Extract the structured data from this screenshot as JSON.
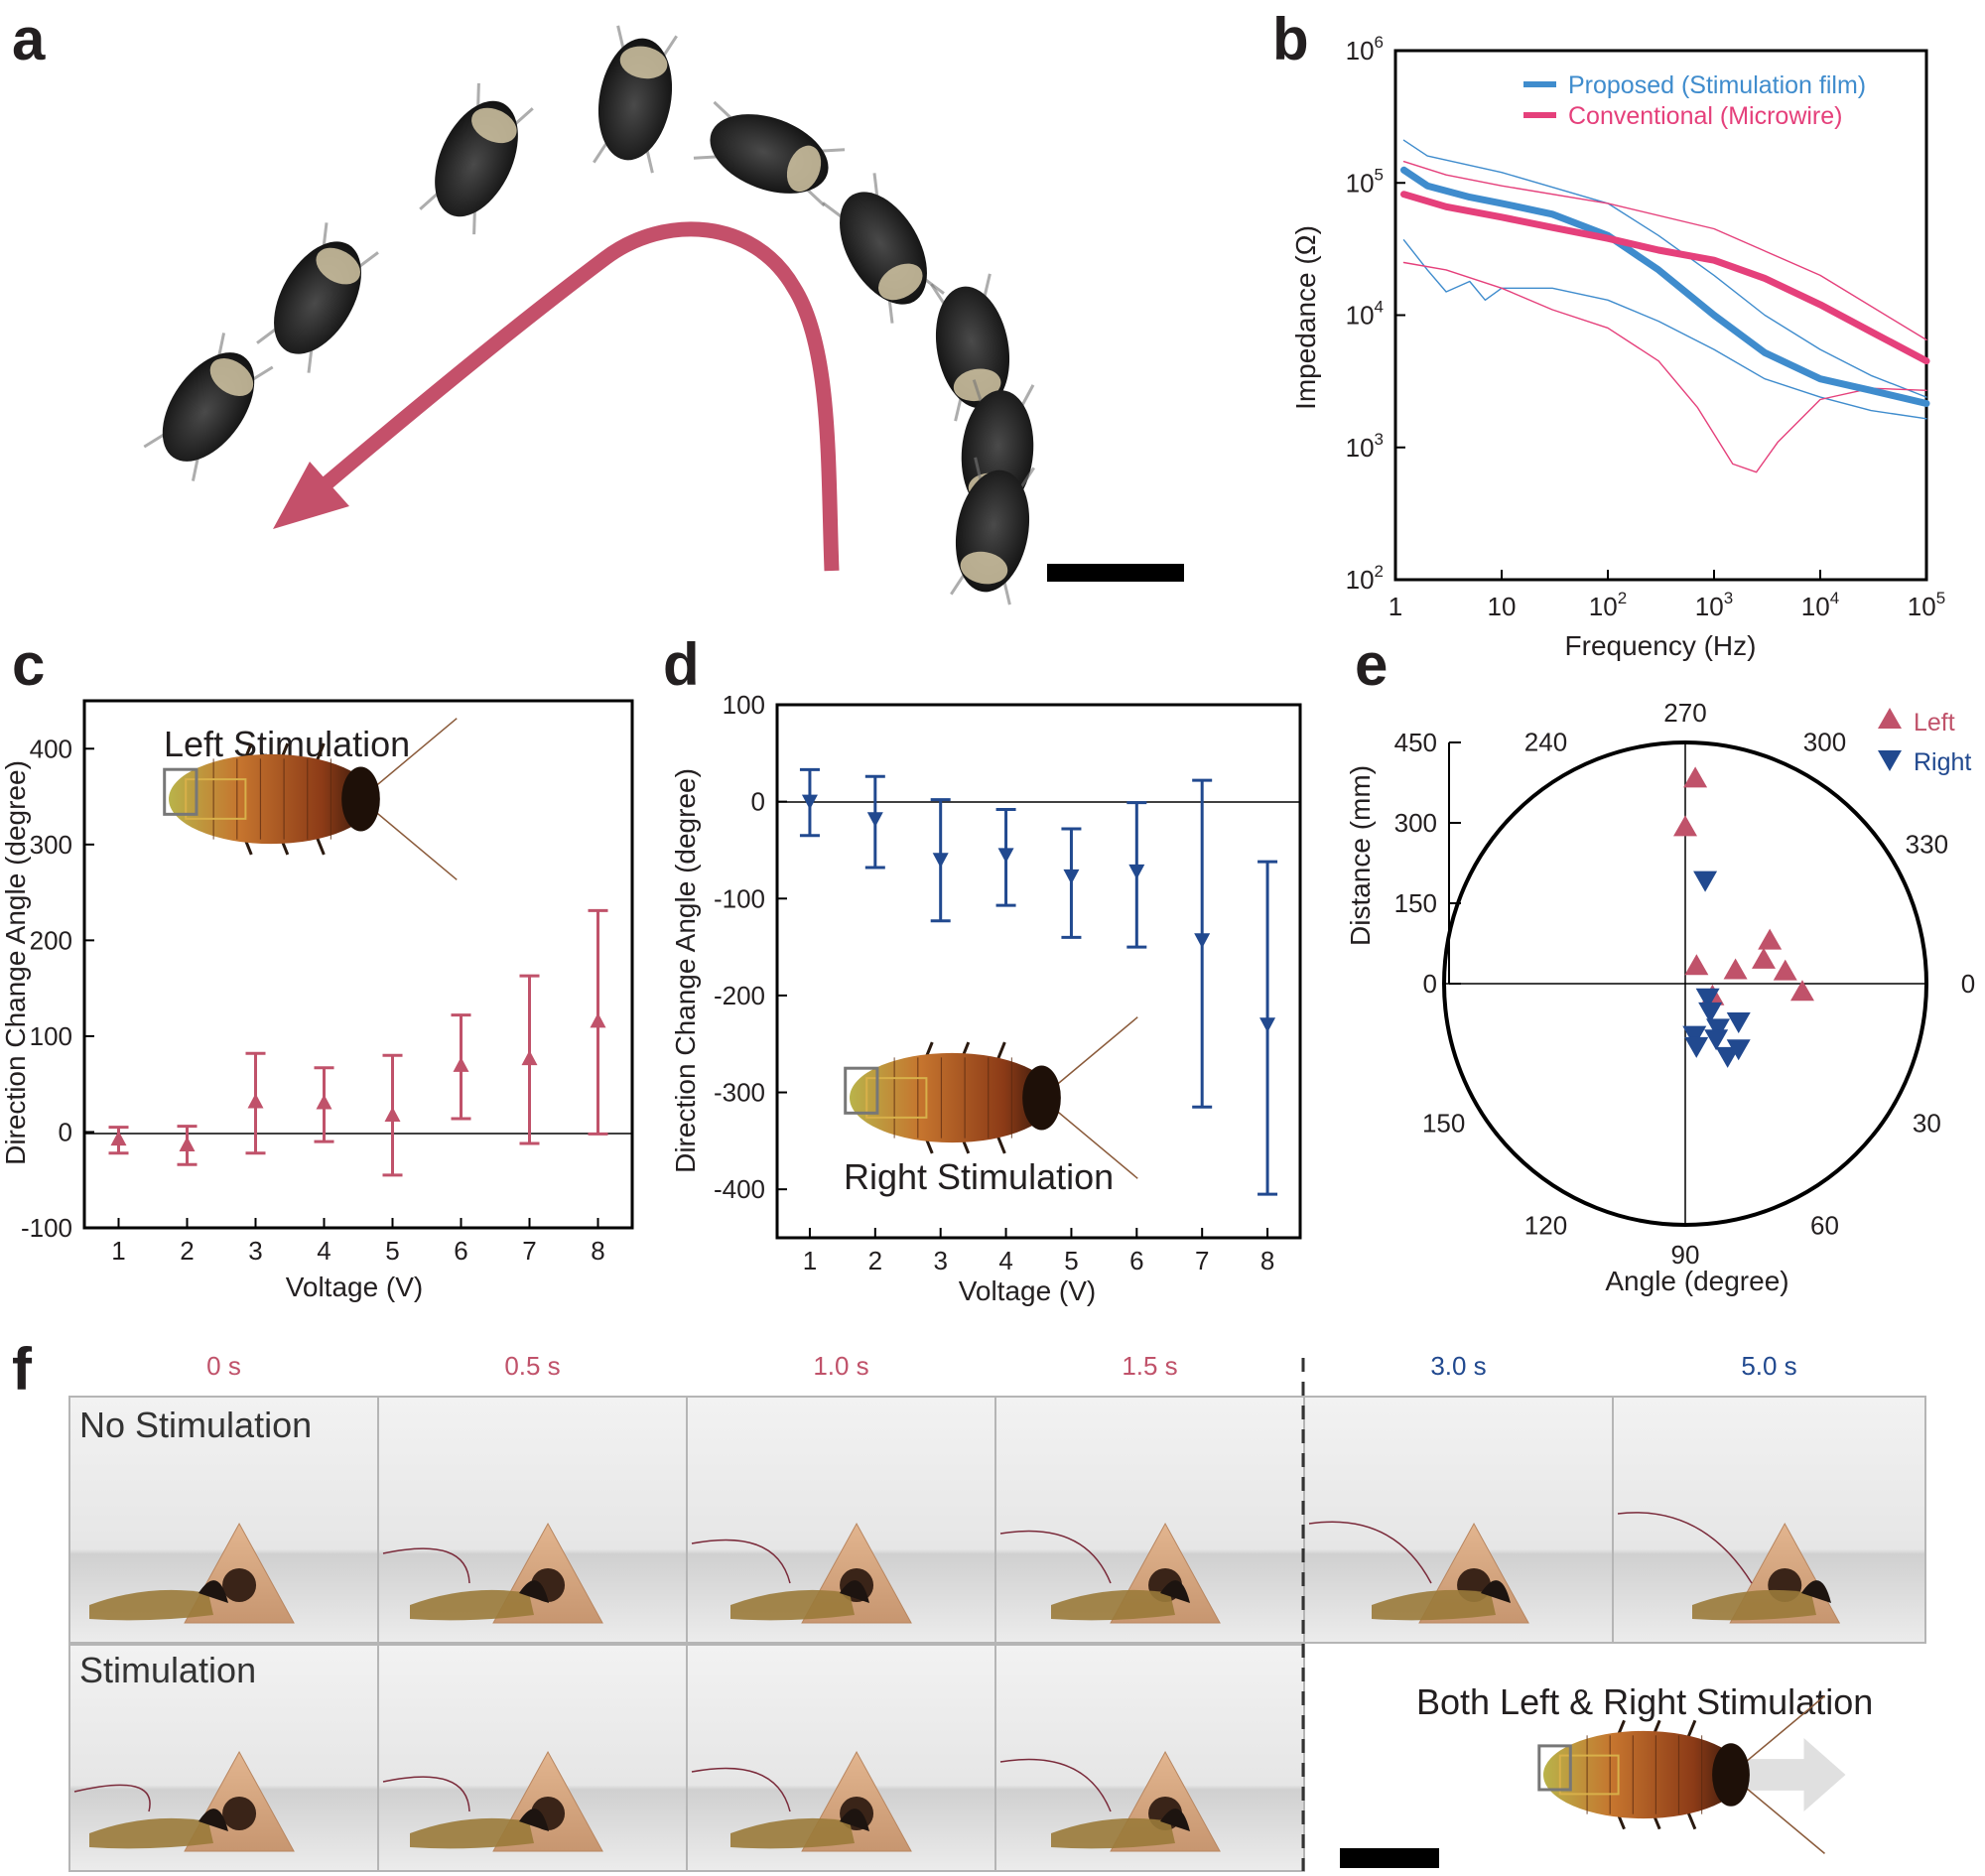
{
  "panel_labels": [
    "a",
    "b",
    "c",
    "d",
    "e",
    "f"
  ],
  "colors": {
    "left": "#c0526a",
    "right": "#21498f",
    "proposed": "#3f8ccd",
    "conventional": "#e5407b",
    "arrow": "#c4506a",
    "dark_text": "#231f20"
  },
  "chart_data": [
    {
      "panel": "b",
      "type": "line",
      "xscale": "log",
      "yscale": "log",
      "xlabel": "Frequency (Hz)",
      "ylabel": "Impedance (Ω)",
      "xlim": [
        1,
        100000
      ],
      "ylim": [
        100,
        1000000
      ],
      "xtick_labels": [
        {
          "base": "1",
          "exp": ""
        },
        {
          "base": "10",
          "exp": ""
        },
        {
          "base": "10",
          "exp": "2"
        },
        {
          "base": "10",
          "exp": "3"
        },
        {
          "base": "10",
          "exp": "4"
        },
        {
          "base": "10",
          "exp": "5"
        }
      ],
      "ytick_labels": [
        {
          "base": "10",
          "exp": "2"
        },
        {
          "base": "10",
          "exp": "3"
        },
        {
          "base": "10",
          "exp": "4"
        },
        {
          "base": "10",
          "exp": "5"
        },
        {
          "base": "10",
          "exp": "6"
        }
      ],
      "legend": [
        "Proposed (Stimulation film)",
        "Conventional (Microwire)"
      ],
      "series": [
        {
          "name": "Proposed (Stimulation film)",
          "role": "mean",
          "color": "#3f8ccd",
          "x": [
            1.2,
            2,
            5,
            10,
            30,
            100,
            300,
            1000,
            3000,
            10000,
            30000,
            100000
          ],
          "y": [
            125000,
            95000,
            78000,
            70000,
            58000,
            40000,
            22000,
            10000,
            5200,
            3300,
            2700,
            2150
          ]
        },
        {
          "name": "Proposed upper",
          "role": "band",
          "color": "#3f8ccd",
          "x": [
            1.2,
            2,
            10,
            100,
            300,
            1000,
            3000,
            10000,
            30000,
            100000
          ],
          "y": [
            210000,
            160000,
            120000,
            70000,
            40000,
            20000,
            10000,
            5500,
            3500,
            2400
          ]
        },
        {
          "name": "Proposed lower",
          "role": "band",
          "color": "#3f8ccd",
          "x": [
            1.2,
            2,
            3,
            5,
            7,
            10,
            30,
            100,
            300,
            1000,
            3000,
            10000,
            30000,
            100000
          ],
          "y": [
            37000,
            22000,
            15000,
            18000,
            13000,
            16000,
            16000,
            13000,
            9000,
            5500,
            3300,
            2400,
            1900,
            1650
          ]
        },
        {
          "name": "Conventional (Microwire)",
          "role": "mean",
          "color": "#e5407b",
          "x": [
            1.2,
            3,
            10,
            30,
            100,
            300,
            1000,
            3000,
            10000,
            30000,
            100000
          ],
          "y": [
            82000,
            66000,
            55000,
            46000,
            38000,
            31000,
            26000,
            19000,
            12000,
            7500,
            4500
          ]
        },
        {
          "name": "Conventional upper",
          "role": "band",
          "color": "#e5407b",
          "x": [
            1.2,
            3,
            10,
            100,
            1000,
            10000,
            100000
          ],
          "y": [
            145000,
            115000,
            95000,
            70000,
            45000,
            20000,
            6500
          ]
        },
        {
          "name": "Conventional lower",
          "role": "band",
          "color": "#e5407b",
          "x": [
            1.2,
            3,
            10,
            30,
            100,
            300,
            700,
            1500,
            2500,
            4000,
            10000,
            30000,
            100000
          ],
          "y": [
            25000,
            22000,
            16000,
            11000,
            8000,
            4500,
            2000,
            750,
            650,
            1100,
            2300,
            2800,
            2700
          ]
        }
      ]
    },
    {
      "panel": "c",
      "type": "scatter",
      "title": "Left Stimulation",
      "xlabel": "Voltage (V)",
      "ylabel": "Direction Change Angle (degree)",
      "xlim": [
        0.5,
        8.5
      ],
      "ylim": [
        -100,
        450
      ],
      "x_ticks": [
        "1",
        "2",
        "3",
        "4",
        "5",
        "6",
        "7",
        "8"
      ],
      "y_ticks": [
        "-100",
        "0",
        "100",
        "200",
        "300",
        "400"
      ],
      "marker": "triangle-up",
      "color": "#c0526a",
      "x": [
        1,
        2,
        3,
        4,
        5,
        6,
        7,
        8
      ],
      "values": [
        -8,
        -14,
        31,
        30,
        17,
        69,
        76,
        115
      ],
      "err_low": [
        -22,
        -34,
        -22,
        -10,
        -45,
        14,
        -12,
        -2
      ],
      "err_high": [
        5,
        6,
        82,
        67,
        80,
        122,
        163,
        231
      ]
    },
    {
      "panel": "d",
      "type": "scatter",
      "title": "Right Stimulation",
      "xlabel": "Voltage (V)",
      "ylabel": "Direction Change Angle (degree)",
      "xlim": [
        0.5,
        8.5
      ],
      "ylim": [
        -450,
        100
      ],
      "x_ticks": [
        "1",
        "2",
        "3",
        "4",
        "5",
        "6",
        "7",
        "8"
      ],
      "y_ticks": [
        "100",
        "0",
        "-100",
        "-200",
        "-300",
        "-400"
      ],
      "marker": "triangle-down",
      "color": "#21498f",
      "x": [
        1,
        2,
        3,
        4,
        5,
        6,
        7,
        8
      ],
      "values": [
        0,
        -18,
        -60,
        -55,
        -77,
        -72,
        -143,
        -230
      ],
      "err_low": [
        -35,
        -68,
        -123,
        -107,
        -140,
        -150,
        -315,
        -405
      ],
      "err_high": [
        33,
        26,
        2,
        -8,
        -28,
        -1,
        22,
        -62
      ]
    },
    {
      "panel": "e",
      "type": "scatter",
      "projection": "polar",
      "xlabel": "Angle (degree)",
      "ylabel": "Distance (mm)",
      "rlim": [
        0,
        450
      ],
      "r_ticks": [
        "0",
        "150",
        "300",
        "450"
      ],
      "angle_ticks": [
        {
          "deg": 0,
          "label": "0"
        },
        {
          "deg": 30,
          "label": "30"
        },
        {
          "deg": 60,
          "label": "60"
        },
        {
          "deg": 90,
          "label": "90"
        },
        {
          "deg": 120,
          "label": "120"
        },
        {
          "deg": 150,
          "label": "150"
        },
        {
          "deg": 240,
          "label": "240"
        },
        {
          "deg": 270,
          "label": "270"
        },
        {
          "deg": 300,
          "label": "300"
        },
        {
          "deg": 330,
          "label": "330"
        }
      ],
      "legend": [
        "Left",
        "Right"
      ],
      "series": [
        {
          "name": "Left",
          "marker": "triangle-up",
          "color": "#c0526a",
          "angle": [
            272.8,
            270,
            302.7,
            345,
            343,
            353,
            25,
            333,
            4
          ],
          "distance": [
            383,
            292,
            39,
            97,
            153,
            188,
            56,
            177,
            219
          ]
        },
        {
          "name": "Right",
          "marker": "triangle-down",
          "color": "#21498f",
          "angle": [
            281,
            33,
            49,
            54,
            61,
            60,
            51,
            36,
            80,
            80
          ],
          "distance": [
            195,
            50,
            71,
            104,
            119,
            158,
            158,
            123,
            99,
            120
          ]
        }
      ]
    }
  ],
  "panel_f": {
    "times": [
      "0 s",
      "0.5 s",
      "1.0 s",
      "1.5 s",
      "3.0 s",
      "5.0 s"
    ],
    "row_labels": [
      "No Stimulation",
      "Stimulation"
    ],
    "caption": "Both Left & Right Stimulation"
  }
}
